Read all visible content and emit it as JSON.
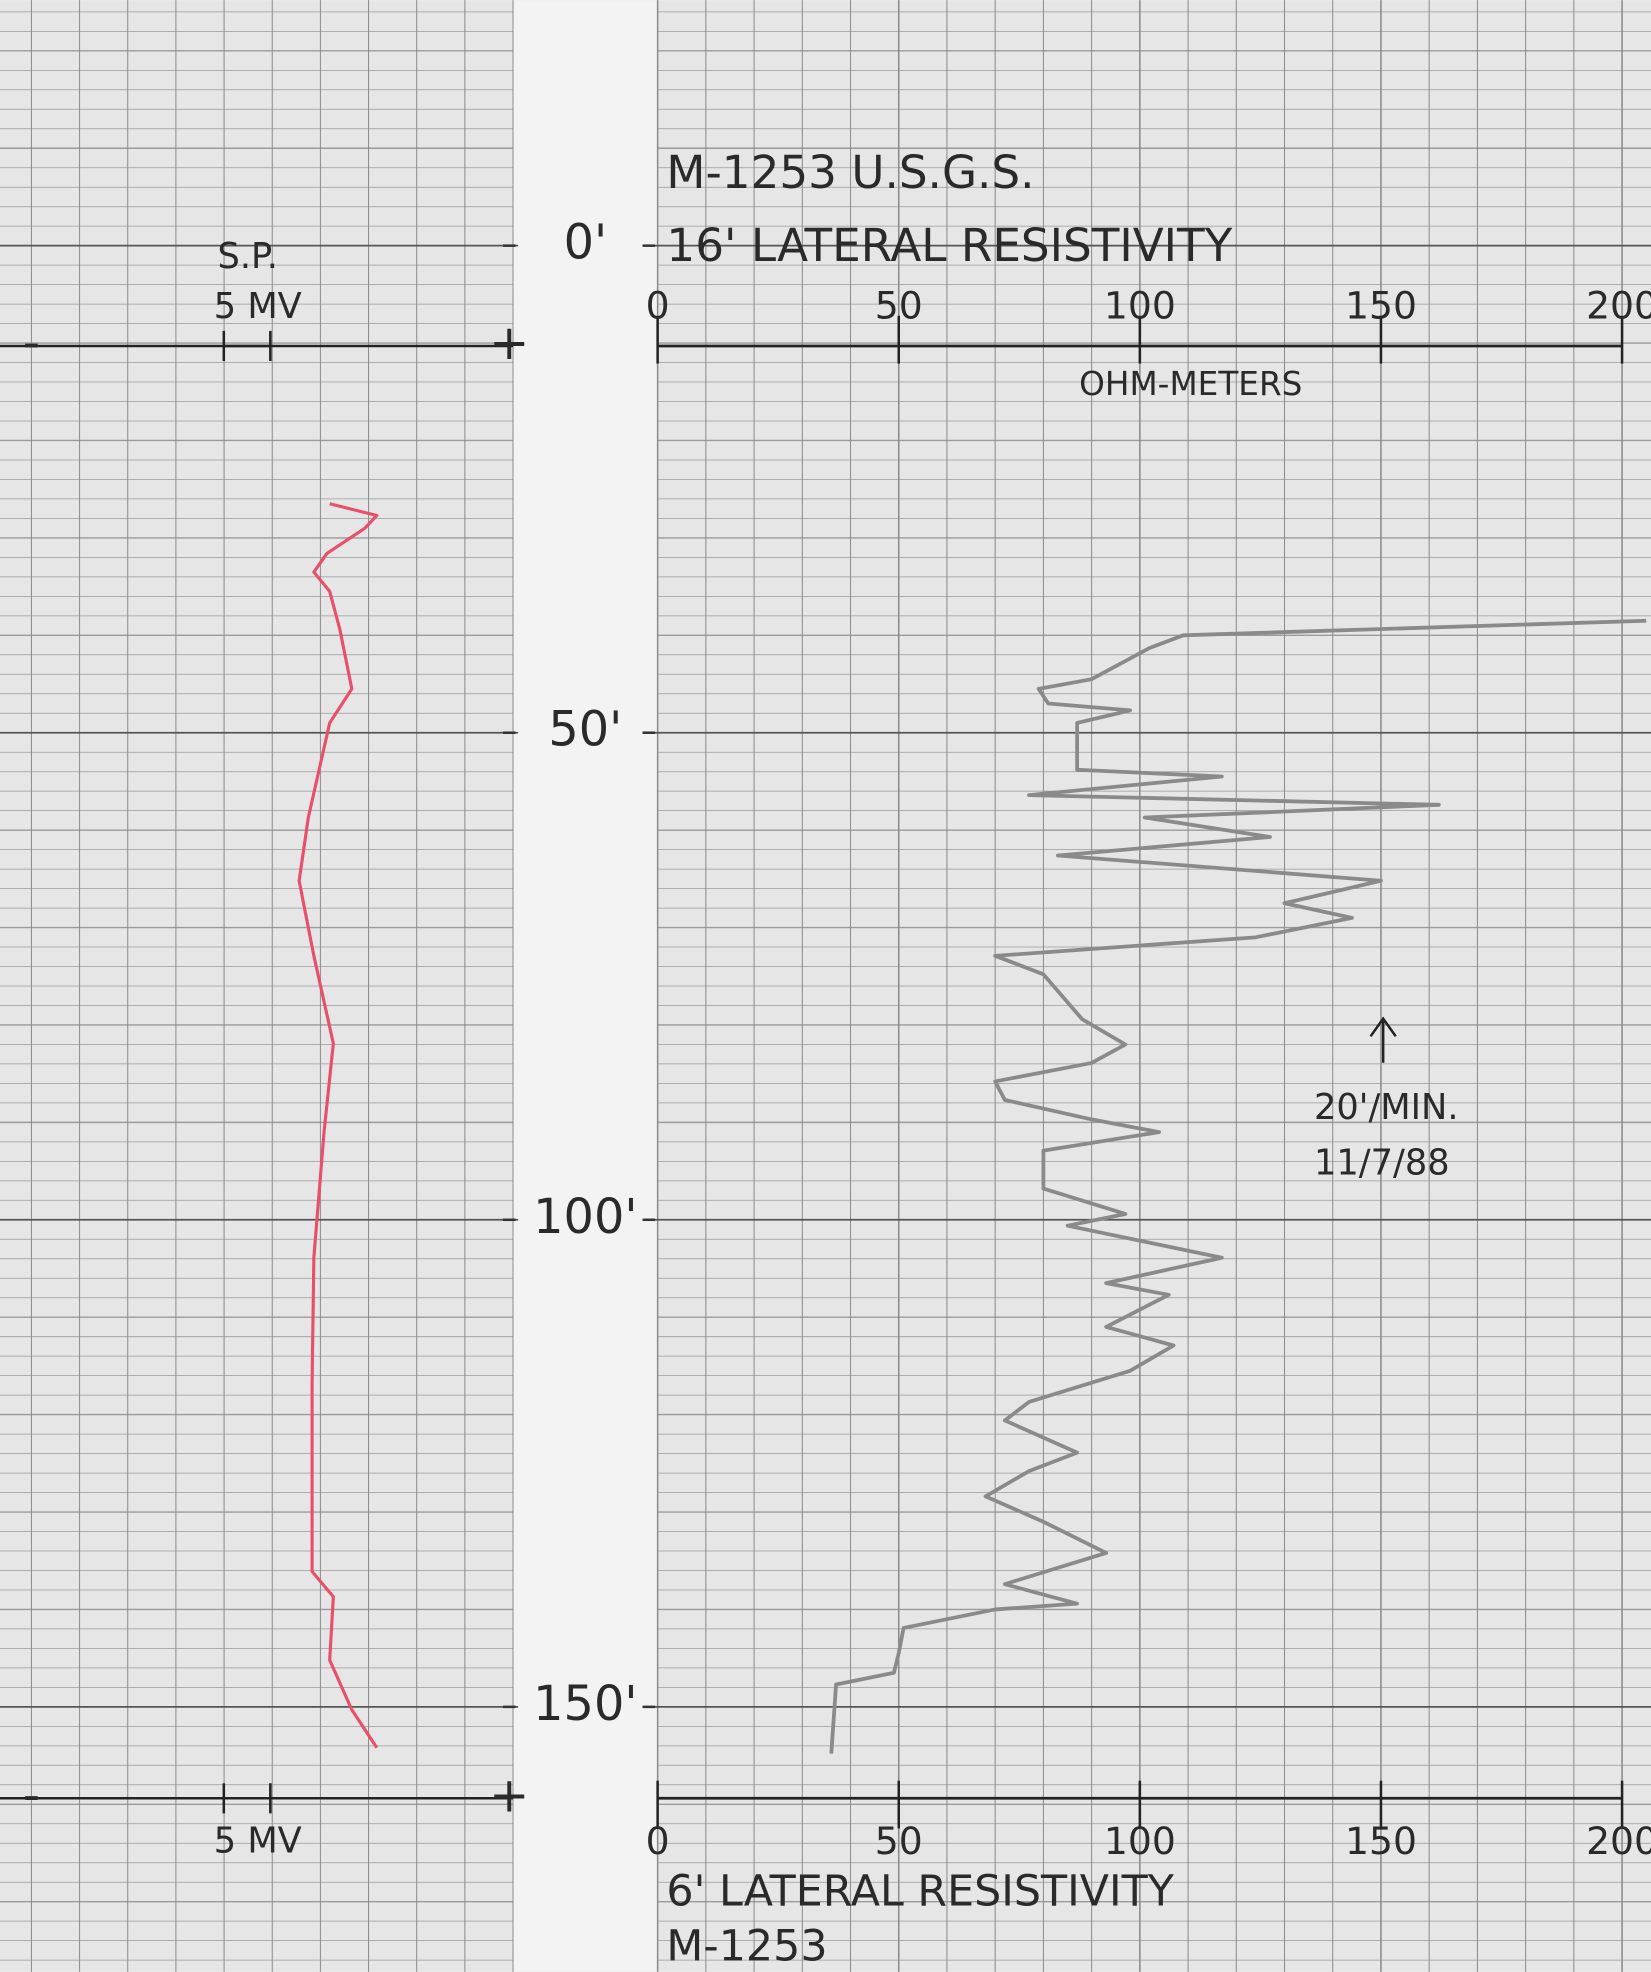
{
  "chart_data": [
    {
      "type": "line",
      "title": "S.P.",
      "scale_label": "5 MV",
      "polarity": [
        "-",
        "+"
      ],
      "xlim": [
        -26,
        26
      ],
      "ylim": [
        -25.2,
        177.2
      ],
      "series": [
        {
          "color": "#e8506a",
          "depth": [
            26.5,
            27.7,
            29,
            31.6,
            33.5,
            35.5,
            39.4,
            45.5,
            49,
            58.7,
            65.2,
            72.9,
            81.9,
            91,
            103.9,
            116.8,
            136.1,
            138.7,
            145.2,
            150.3,
            154.2
          ],
          "values": [
            6.2,
            11.3,
            10,
            5.9,
            4.5,
            6.2,
            7.3,
            8.6,
            6.2,
            3.9,
            2.9,
            4.5,
            6.6,
            5.6,
            4.5,
            4.3,
            4.3,
            6.6,
            6.2,
            8.6,
            11.3
          ]
        }
      ]
    },
    {
      "type": "line",
      "title": "M-1253 U.S.G.S.",
      "subtitle": "16' LATERAL RESISTIVITY",
      "xlabel": "OHM-METERS",
      "bottom_title": "6' LATERAL RESISTIVITY",
      "bottom_subtitle": "M-1253",
      "annotations": [
        "20'/MIN.",
        "11/7/88"
      ],
      "xlim": [
        0,
        206
      ],
      "xticks": [
        0,
        50,
        100,
        150,
        200
      ],
      "ylim": [
        -25.2,
        177.2
      ],
      "yticks": [
        {
          "value": 0,
          "label": "0'"
        },
        {
          "value": 50,
          "label": "50'"
        },
        {
          "value": 100,
          "label": "100'"
        },
        {
          "value": 150,
          "label": "150'"
        }
      ],
      "series": [
        {
          "color": "#8a8a8a",
          "depth": [
            38.5,
            40,
            41.3,
            44.5,
            45.5,
            47,
            47.7,
            49,
            53.8,
            54.5,
            56.4,
            57.4,
            58.7,
            60.7,
            62.6,
            65.2,
            67.5,
            69,
            71,
            72.9,
            74.8,
            79.4,
            82,
            83.9,
            85.8,
            87.7,
            89.7,
            91,
            92.9,
            96.8,
            99.4,
            100.6,
            103.9,
            106.5,
            107.7,
            111,
            112.9,
            115.5,
            118.7,
            120.6,
            123.9,
            125.8,
            128.4,
            131,
            134.2,
            137.4,
            139.4,
            140,
            141.9,
            144.5,
            146.5,
            147.7,
            154.8
          ],
          "values": [
            205,
            109,
            102,
            90,
            79,
            81,
            98,
            87,
            87,
            117,
            77,
            162,
            101,
            127,
            83,
            150,
            130,
            144,
            124,
            70,
            80,
            88,
            97,
            90,
            70,
            72,
            90,
            104,
            80,
            80,
            97,
            85,
            117,
            93,
            106,
            93,
            107,
            98,
            77,
            72,
            87,
            77,
            68,
            80,
            93,
            72,
            87,
            70,
            51,
            50,
            49,
            37,
            36
          ]
        }
      ]
    }
  ]
}
